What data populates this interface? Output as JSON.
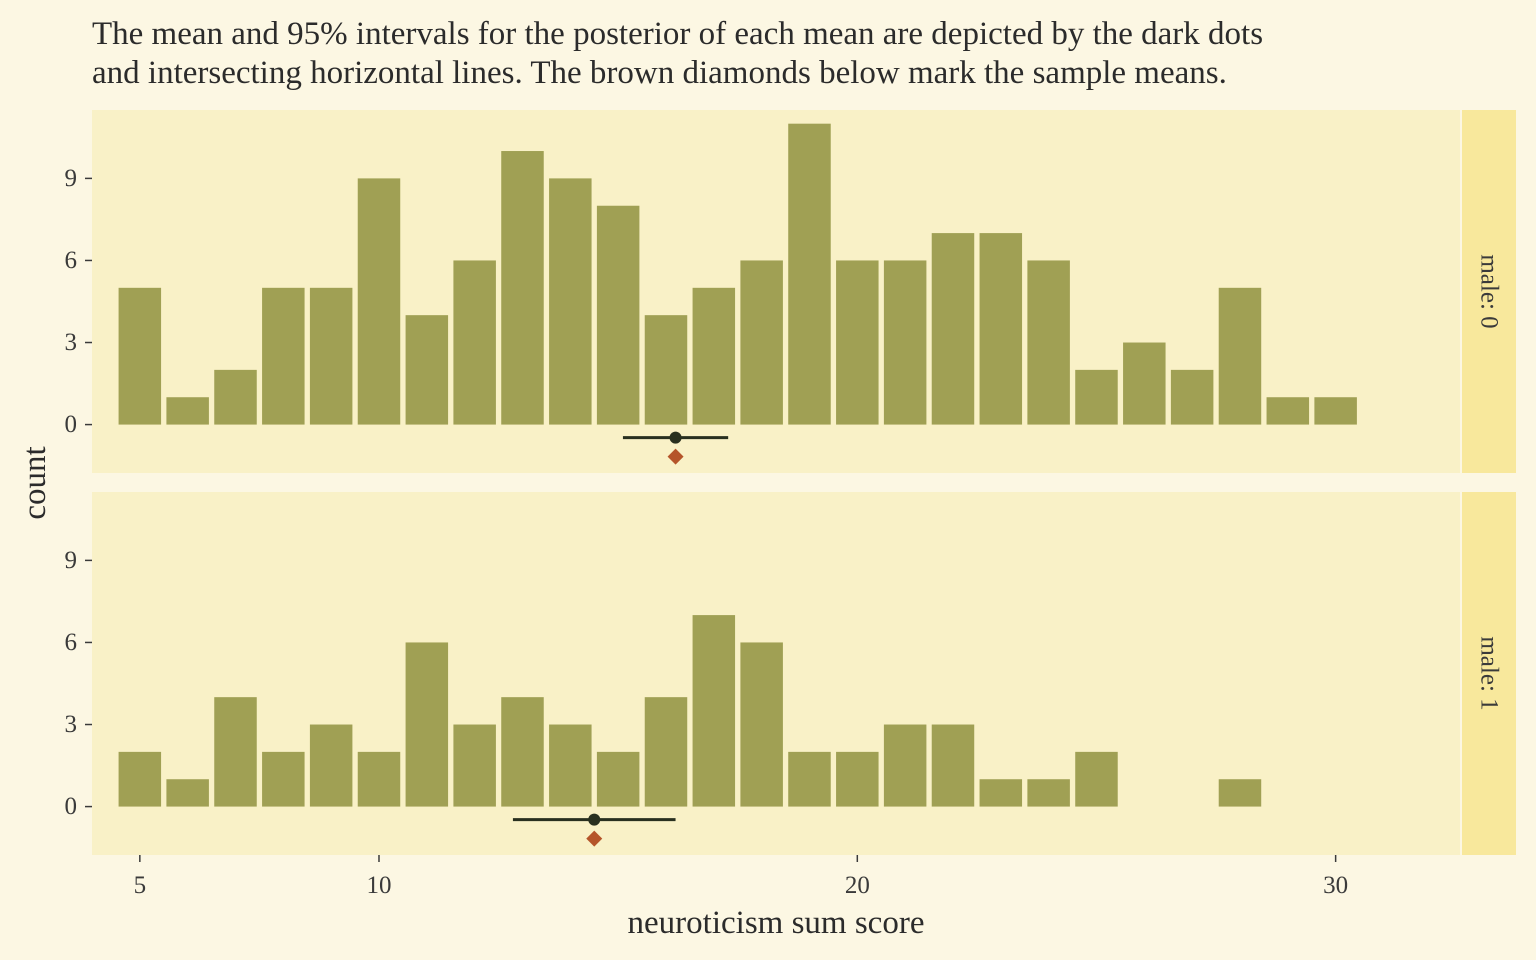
{
  "chart_data": {
    "type": "bar",
    "subtitle": [
      "The mean and 95% intervals for the posterior of each mean are depicted by the dark dots",
      "and intersecting horizontal lines. The brown diamonds below mark the sample means."
    ],
    "xlabel": "neuroticism sum score",
    "ylabel": "count",
    "x_ticks": [
      5,
      10,
      20,
      30
    ],
    "y_ticks": [
      0,
      3,
      6,
      9
    ],
    "xlim": [
      4.0,
      32.6
    ],
    "ylim": [
      -1.77,
      11.5
    ],
    "colors": {
      "bar": "#a0a054",
      "panel": "#f9f1c7",
      "strip": "#f8e89c",
      "interval": "#29301f",
      "sample_mean": "#b5552a"
    },
    "facets": [
      {
        "label": "male: 0",
        "x": [
          5,
          6,
          7,
          8,
          9,
          10,
          11,
          12,
          13,
          14,
          15,
          16,
          17,
          18,
          19,
          20,
          21,
          22,
          23,
          24,
          25,
          26,
          27,
          28,
          29,
          30
        ],
        "values": [
          5,
          1,
          2,
          5,
          5,
          9,
          4,
          6,
          10,
          9,
          8,
          4,
          5,
          6,
          11,
          6,
          6,
          7,
          7,
          6,
          2,
          3,
          2,
          5,
          1,
          1
        ],
        "posterior_mean": 16.2,
        "interval": [
          15.1,
          17.3
        ],
        "sample_mean": 16.2
      },
      {
        "label": "male: 1",
        "x": [
          5,
          6,
          7,
          8,
          9,
          10,
          11,
          12,
          13,
          14,
          15,
          16,
          17,
          18,
          19,
          20,
          21,
          22,
          23,
          24,
          25,
          26,
          27,
          28,
          29,
          30
        ],
        "values": [
          2,
          1,
          4,
          2,
          3,
          2,
          6,
          3,
          4,
          3,
          2,
          4,
          7,
          6,
          2,
          2,
          3,
          3,
          1,
          1,
          2,
          0,
          0,
          1,
          0,
          0
        ],
        "posterior_mean": 14.5,
        "interval": [
          12.8,
          16.2
        ],
        "sample_mean": 14.5
      }
    ]
  }
}
